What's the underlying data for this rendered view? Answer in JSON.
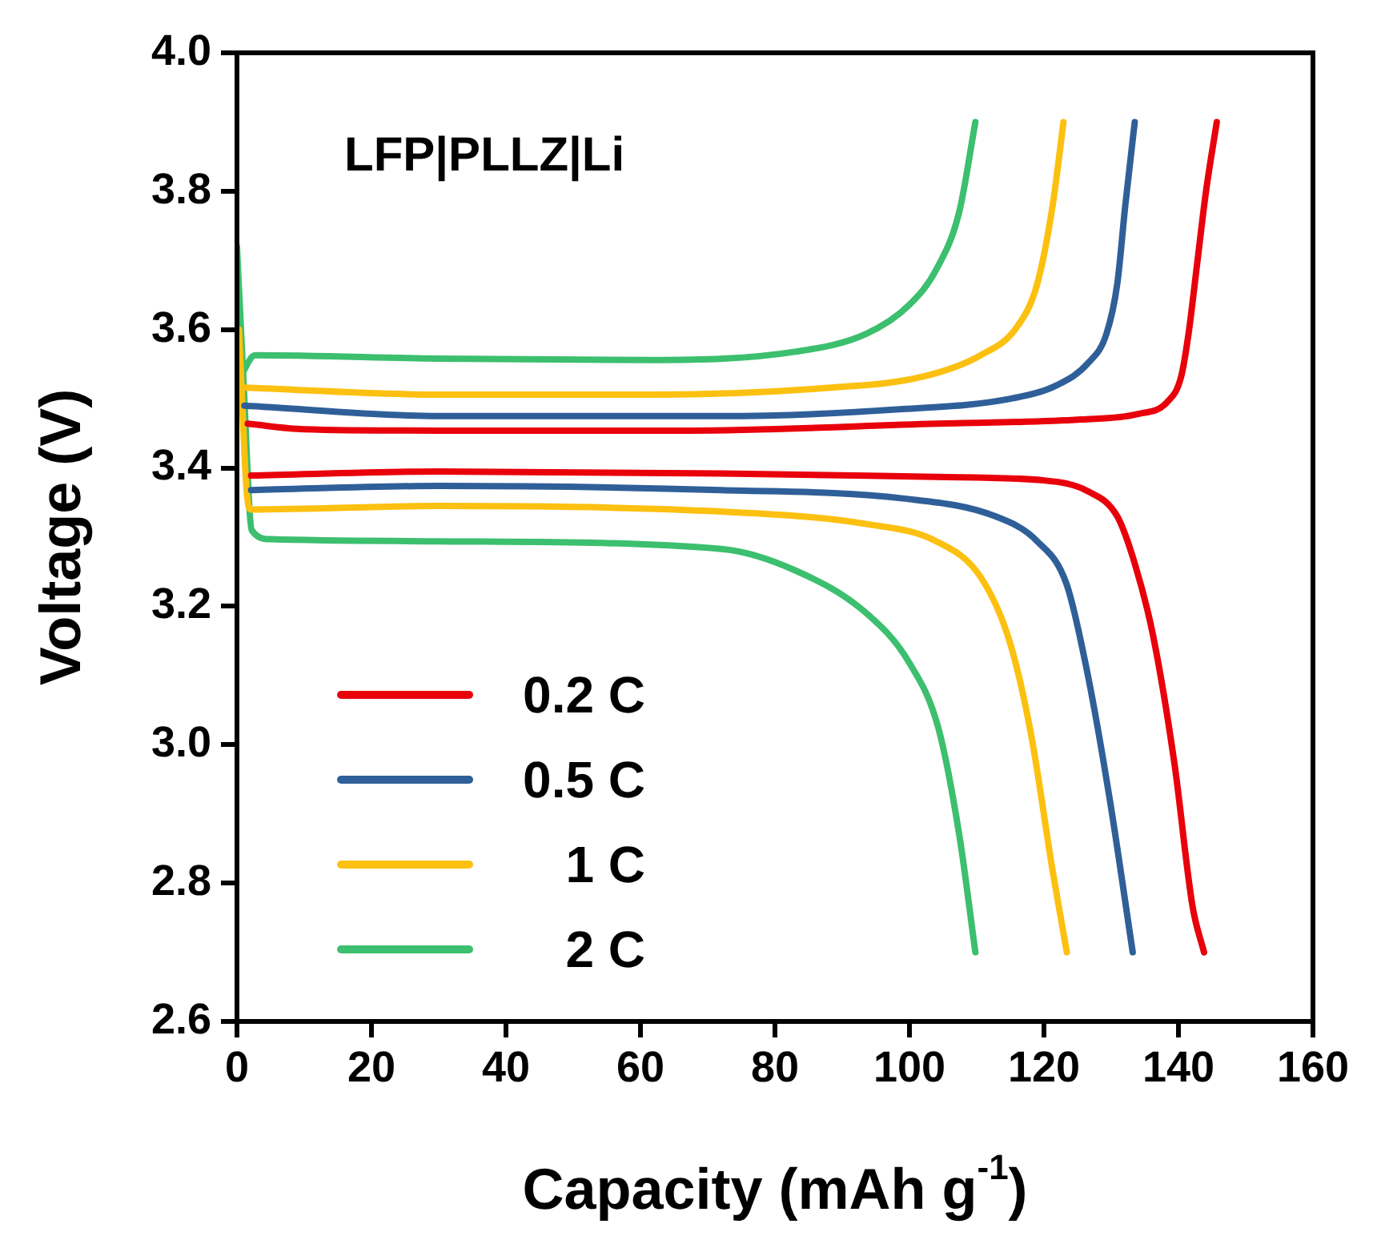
{
  "chart_data": {
    "type": "line",
    "xlabel": "Capacity (mAh g$^{-1}$)",
    "ylabel": "Voltage (V)",
    "annotations": [
      "LFP|PLLZ|Li"
    ],
    "xlim": [
      0,
      160
    ],
    "xticks": [
      0,
      20,
      40,
      60,
      80,
      100,
      120,
      140,
      160
    ],
    "ylim": [
      2.6,
      4.0
    ],
    "yticks": [
      2.6,
      2.8,
      {
        "value": 3,
        "label": "3.0"
      },
      3.2,
      3.4,
      3.6,
      3.8,
      {
        "value": 4,
        "label": "4.0"
      }
    ],
    "grid": false,
    "legend": "bottom left",
    "marker": "none",
    "line_style": "solid",
    "series": [
      {
        "name": "0.2 C",
        "color": "#e8000b",
        "x": [
          1.6,
          10,
          30,
          67,
          104,
          125.5,
          134,
          138.3,
          140.4,
          141.5,
          142.8,
          144.1,
          145.7
        ],
        "values": [
          3.464,
          3.456,
          3.454,
          3.454,
          3.464,
          3.47,
          3.478,
          3.495,
          3.532,
          3.594,
          3.697,
          3.8,
          3.9
        ]
      },
      {
        "color": "#e8000b",
        "x": [
          2.1,
          30,
          72,
          104,
          120,
          126.6,
          130.9,
          133.5,
          136.2,
          139.4,
          142.1,
          143.8
        ],
        "values": [
          3.389,
          3.395,
          3.392,
          3.387,
          3.382,
          3.366,
          3.33,
          3.262,
          3.159,
          2.973,
          2.766,
          2.7
        ]
      },
      {
        "name": "0.5 C",
        "color": "#2f5f98",
        "x": [
          1.1,
          30,
          72,
          99,
          115,
          122,
          126.6,
          129.3,
          130.9,
          132.1,
          133.5
        ],
        "values": [
          3.49,
          3.475,
          3.475,
          3.485,
          3.5,
          3.52,
          3.552,
          3.594,
          3.666,
          3.78,
          3.9
        ]
      },
      {
        "color": "#2f5f98",
        "x": [
          2.1,
          30,
          72,
          99,
          112.8,
          119,
          123.4,
          126.6,
          129.8,
          133.2
        ],
        "values": [
          3.368,
          3.374,
          3.368,
          3.356,
          3.33,
          3.294,
          3.231,
          3.097,
          2.92,
          2.7
        ]
      },
      {
        "name": "1 C",
        "color": "#fcc010",
        "x": [
          1.1,
          30,
          62,
          88.3,
          102,
          110.6,
          116,
          119,
          121.3,
          122.9
        ],
        "values": [
          3.516,
          3.506,
          3.506,
          3.516,
          3.532,
          3.563,
          3.604,
          3.666,
          3.78,
          3.9
        ]
      },
      {
        "color": "#fcc010",
        "x": [
          0.3,
          1.5,
          2.1,
          30,
          72,
          93.6,
          104,
          110.6,
          114.9,
          118.1,
          121.3,
          123.4
        ],
        "values": [
          3.6,
          3.36,
          3.34,
          3.345,
          3.337,
          3.319,
          3.294,
          3.242,
          3.149,
          3.014,
          2.817,
          2.7
        ]
      },
      {
        "name": "2 C",
        "color": "#3cbf6e",
        "x": [
          0.5,
          2.7,
          30,
          61.7,
          83,
          93.6,
          100,
          104,
          107.4,
          109.8
        ],
        "values": [
          3.532,
          3.563,
          3.558,
          3.556,
          3.568,
          3.594,
          3.636,
          3.687,
          3.77,
          3.9
        ]
      },
      {
        "color": "#3cbf6e",
        "x": [
          0,
          1,
          2.2,
          5,
          30,
          72,
          83,
          93.6,
          100,
          104.3,
          107.4,
          109.8
        ],
        "values": [
          3.72,
          3.52,
          3.31,
          3.297,
          3.294,
          3.283,
          3.252,
          3.19,
          3.118,
          3.024,
          2.87,
          2.7
        ]
      }
    ]
  }
}
